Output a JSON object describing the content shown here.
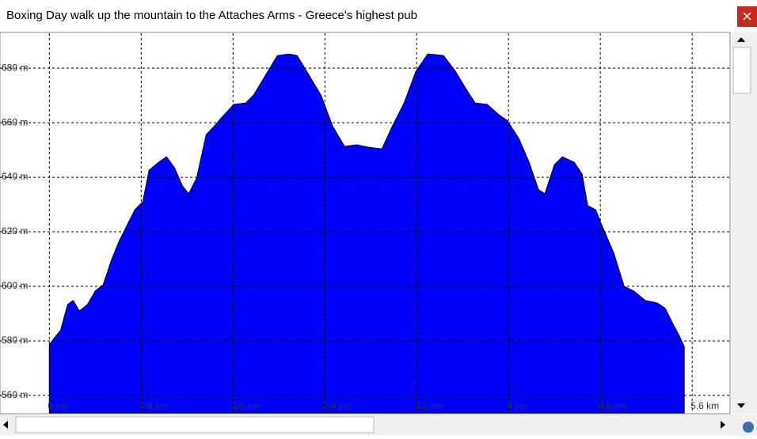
{
  "chart_data": {
    "type": "area",
    "title": "Boxing Day walk up the mountain to the Attaches Arms - Greece's highest pub",
    "color": "#0000ff",
    "grid": true,
    "x": [
      0,
      0.055,
      0.097,
      0.159,
      0.207,
      0.262,
      0.331,
      0.4,
      0.469,
      0.538,
      0.607,
      0.676,
      0.745,
      0.814,
      0.869,
      0.952,
      1.021,
      1.09,
      1.159,
      1.214,
      1.283,
      1.366,
      1.434,
      1.503,
      1.607,
      1.71,
      1.779,
      1.883,
      1.986,
      2.09,
      2.159,
      2.262,
      2.366,
      2.469,
      2.572,
      2.676,
      2.779,
      2.897,
      2.986,
      3.09,
      3.193,
      3.297,
      3.434,
      3.538,
      3.641,
      3.71,
      3.814,
      3.917,
      3.986,
      4.09,
      4.179,
      4.262,
      4.317,
      4.4,
      4.469,
      4.572,
      4.641,
      4.69,
      4.759,
      4.814,
      4.917,
      5.007,
      5.09,
      5.193,
      5.297,
      5.366,
      5.434,
      5.49,
      5.531
    ],
    "values": [
      578.6,
      581.7,
      583.8,
      593.3,
      594.8,
      591.0,
      593.3,
      598.3,
      600.6,
      609.3,
      616.5,
      622.3,
      628.1,
      631.0,
      642.6,
      645.5,
      647.5,
      643.5,
      636.8,
      634.0,
      639.7,
      655.6,
      658.6,
      662.0,
      666.7,
      667.2,
      670.1,
      677.4,
      684.6,
      685.2,
      684.6,
      677.4,
      670.1,
      658.6,
      651.3,
      651.9,
      651.0,
      650.4,
      658.6,
      667.2,
      678.8,
      685.2,
      684.6,
      678.8,
      671.6,
      667.2,
      666.7,
      662.9,
      660.9,
      654.2,
      645.5,
      635.4,
      634.0,
      644.6,
      647.5,
      645.5,
      641.2,
      629.6,
      628.1,
      622.3,
      612.2,
      600.0,
      598.3,
      594.8,
      593.9,
      591.9,
      586.1,
      581.7,
      577.9
    ],
    "xlim": [
      -0.43,
      5.93
    ],
    "ylim": [
      553.6,
      692.8
    ],
    "xticks": [
      {
        "value": 0,
        "label": "0 km"
      },
      {
        "value": 0.8,
        "label": "0.8 km"
      },
      {
        "value": 1.6,
        "label": "1.6 km"
      },
      {
        "value": 2.4,
        "label": "2.4 km"
      },
      {
        "value": 3.2,
        "label": "3.2 km"
      },
      {
        "value": 4,
        "label": "4 km"
      },
      {
        "value": 4.8,
        "label": "4.8 km"
      },
      {
        "value": 5.6,
        "label": "5.6 km"
      }
    ],
    "yticks": [
      {
        "value": 560,
        "label": "560 m"
      },
      {
        "value": 580,
        "label": "580 m"
      },
      {
        "value": 600,
        "label": "600 m"
      },
      {
        "value": 620,
        "label": "620 m"
      },
      {
        "value": 640,
        "label": "640 m"
      },
      {
        "value": 660,
        "label": "660 m"
      },
      {
        "value": 680,
        "label": "680 m"
      }
    ]
  }
}
